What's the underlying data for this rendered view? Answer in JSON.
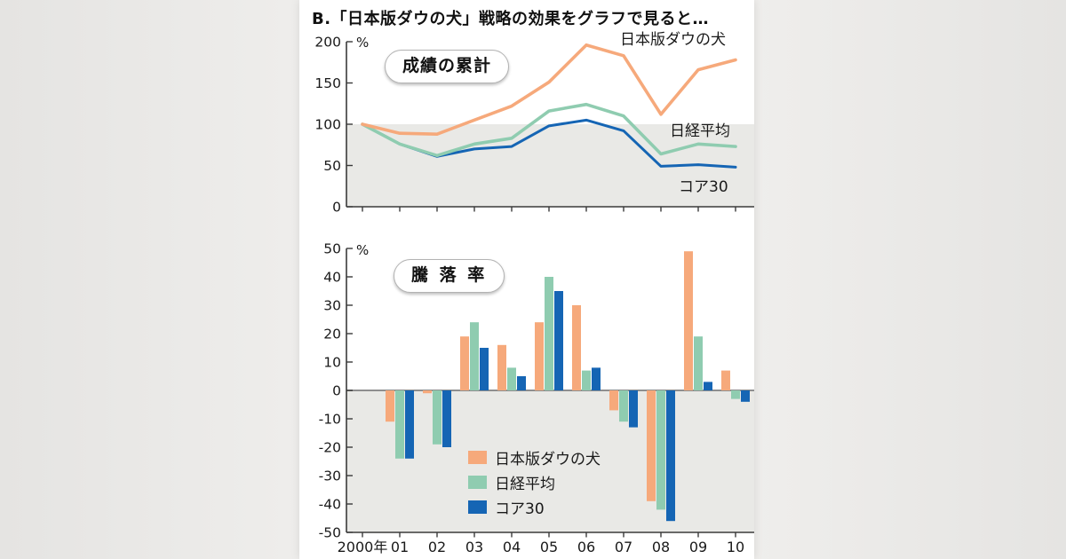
{
  "page": {
    "title": "B.「日本版ダウの犬」戦略の効果をグラフで見ると…"
  },
  "colors": {
    "dow": "#f6a97b",
    "nikkei": "#8fccb0",
    "core30": "#1565b4",
    "shade": "#e9e9e6",
    "axis": "#3a3a3a",
    "zero_line": "#8f8f8f",
    "text": "#1a1a1a"
  },
  "chart_data": [
    {
      "type": "line",
      "title": "成績の累計",
      "unit": "%",
      "x": [
        "2000年",
        "01",
        "02",
        "03",
        "04",
        "05",
        "06",
        "07",
        "08",
        "09",
        "10"
      ],
      "ylim": [
        0,
        200
      ],
      "yticks": [
        0,
        50,
        100,
        150,
        200
      ],
      "grid": false,
      "shaded_below": 100,
      "series": [
        {
          "name": "日本版ダウの犬",
          "color_key": "dow",
          "values": [
            100,
            89,
            88,
            105,
            122,
            151,
            196,
            183,
            112,
            166,
            178
          ]
        },
        {
          "name": "日経平均",
          "color_key": "nikkei",
          "values": [
            100,
            76,
            62,
            76,
            83,
            116,
            124,
            110,
            64,
            76,
            73
          ]
        },
        {
          "name": "コア30",
          "color_key": "core30",
          "values": [
            100,
            76,
            61,
            70,
            73,
            98,
            105,
            92,
            49,
            51,
            48
          ]
        }
      ]
    },
    {
      "type": "bar",
      "title": "騰 落 率",
      "unit": "%",
      "x": [
        "2000年",
        "01",
        "02",
        "03",
        "04",
        "05",
        "06",
        "07",
        "08",
        "09",
        "10"
      ],
      "ylim": [
        -50,
        50
      ],
      "yticks": [
        -50,
        -40,
        -30,
        -20,
        -10,
        0,
        10,
        20,
        30,
        40,
        50
      ],
      "grid": false,
      "shaded_below": 0,
      "legend_position": "inside-bottom-left",
      "series": [
        {
          "name": "日本版ダウの犬",
          "color_key": "dow",
          "values": [
            null,
            -11,
            -1,
            19,
            16,
            24,
            30,
            -7,
            -39,
            49,
            7
          ]
        },
        {
          "name": "日経平均",
          "color_key": "nikkei",
          "values": [
            null,
            -24,
            -19,
            24,
            8,
            40,
            7,
            -11,
            -42,
            19,
            -3
          ]
        },
        {
          "name": "コア30",
          "color_key": "core30",
          "values": [
            null,
            -24,
            -20,
            15,
            5,
            35,
            8,
            -13,
            -46,
            3,
            -4
          ]
        }
      ]
    }
  ]
}
